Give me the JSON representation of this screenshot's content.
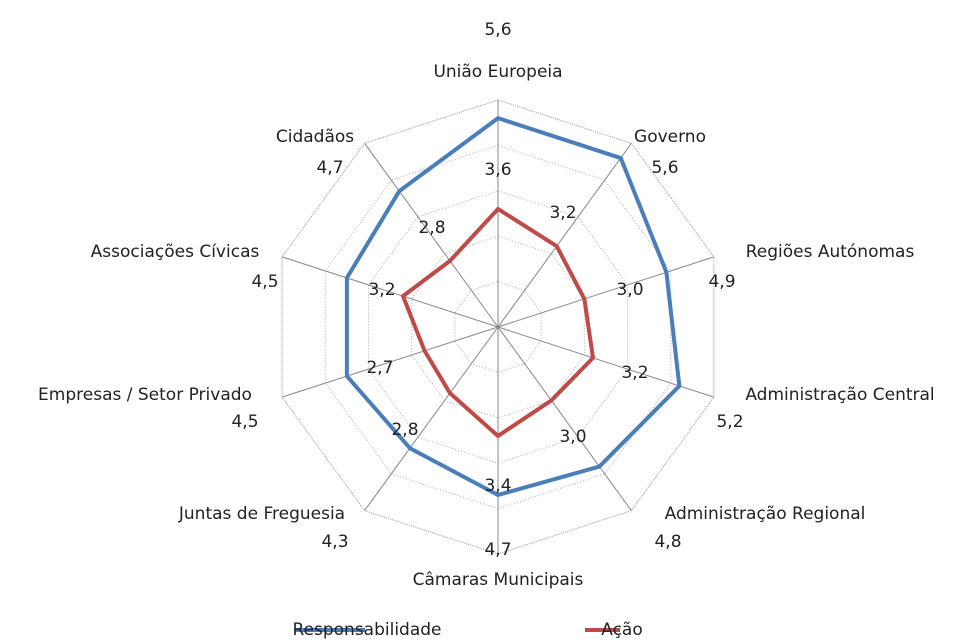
{
  "chart_data": {
    "type": "radar",
    "categories": [
      "União Europeia",
      "Governo",
      "Regiões Autónomas",
      "Administração Central",
      "Administração Regional",
      "Câmaras Municipais",
      "Juntas de Freguesia",
      "Empresas / Setor Privado",
      "Associações Cívicas",
      "Cidadãos"
    ],
    "rlim": [
      1,
      6
    ],
    "rticks": [
      1,
      2,
      3,
      4,
      5,
      6
    ],
    "grid": true,
    "legend": "bottom",
    "series": [
      {
        "name": "Responsabilidade",
        "color": "#4a7ebb",
        "values": [
          5.6,
          5.6,
          4.9,
          5.2,
          4.8,
          4.7,
          4.3,
          4.5,
          4.5,
          4.7
        ],
        "value_labels": [
          "5,6",
          "5,6",
          "4,9",
          "5,2",
          "4,8",
          "4,7",
          "4,3",
          "4,5",
          "4,5",
          "4,7"
        ]
      },
      {
        "name": "Ação",
        "color": "#be4b48",
        "values": [
          3.6,
          3.2,
          3.0,
          3.2,
          3.0,
          3.4,
          2.8,
          2.7,
          3.2,
          2.8
        ],
        "value_labels": [
          "3,6",
          "3,2",
          "3,0",
          "3,2",
          "3,0",
          "3,4",
          "2,8",
          "2,7",
          "3,2",
          "2,8"
        ]
      }
    ]
  }
}
